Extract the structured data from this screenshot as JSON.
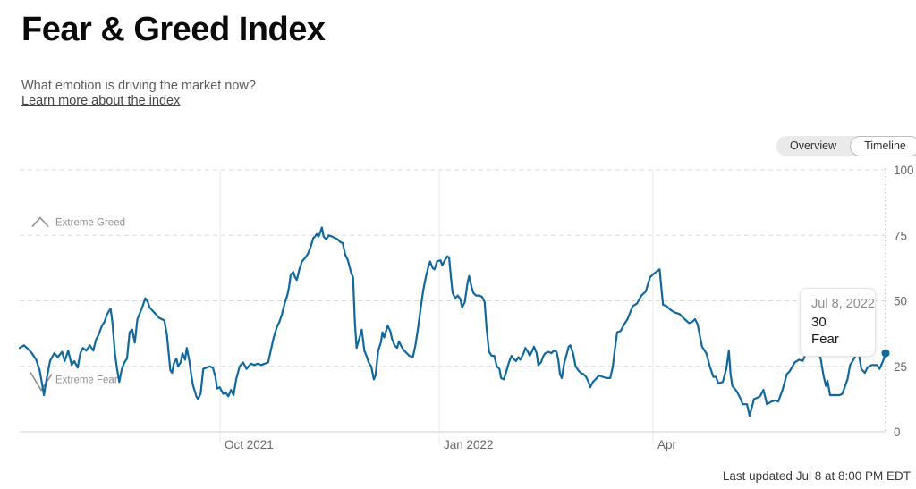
{
  "page": {
    "title": "Fear & Greed Index",
    "subtitle": "What emotion is driving the market now?",
    "link_label": "Learn more about the index",
    "last_updated": "Last updated Jul 8 at 8:00 PM EDT"
  },
  "toggle": {
    "options": [
      "Overview",
      "Timeline"
    ],
    "selected": "Timeline"
  },
  "tooltip": {
    "date": "Jul 8, 2022",
    "value": "30",
    "label": "Fear"
  },
  "colors": {
    "line": "#11689d",
    "dot": "#11689d",
    "grid_dashed": "#d9d9d9",
    "grid_month": "#e9e9e9",
    "axis_zero_line": "#cfcfcf",
    "axis_dotted": "#ababab",
    "axis_text": "#666666",
    "annotation": "#8f8f8f"
  },
  "chart_data": {
    "type": "line",
    "title": "Fear & Greed Index timeline",
    "x_domain": [
      "Jul 2021",
      "Jul 8, 2022"
    ],
    "x_ticks": [
      {
        "label": "Oct 2021",
        "f": 0.2314
      },
      {
        "label": "Jan 2022",
        "f": 0.4845
      },
      {
        "label": "Apr",
        "f": 0.7314
      }
    ],
    "ylim": [
      0,
      100
    ],
    "y_ticks": [
      0,
      25,
      50,
      75,
      100
    ],
    "grid": "dashed-horizontal",
    "legend": "none",
    "annotations": [
      {
        "label": "Extreme Greed",
        "icon": "chevron-up",
        "value": 80
      },
      {
        "label": "Extreme Fear",
        "icon": "chevron-down",
        "value": 20
      }
    ],
    "last_point": {
      "date": "Jul 8, 2022",
      "value": 30,
      "sentiment": "Fear"
    },
    "points": [
      [
        0.0,
        32
      ],
      [
        0.005,
        33
      ],
      [
        0.01,
        31.5
      ],
      [
        0.014,
        30
      ],
      [
        0.019,
        27.5
      ],
      [
        0.023,
        23.5
      ],
      [
        0.026,
        18
      ],
      [
        0.028,
        14
      ],
      [
        0.031,
        20
      ],
      [
        0.035,
        27
      ],
      [
        0.04,
        30
      ],
      [
        0.044,
        28.5
      ],
      [
        0.049,
        30.5
      ],
      [
        0.052,
        27
      ],
      [
        0.056,
        31
      ],
      [
        0.06,
        25.5
      ],
      [
        0.063,
        27
      ],
      [
        0.067,
        24.5
      ],
      [
        0.07,
        30
      ],
      [
        0.073,
        32
      ],
      [
        0.077,
        31
      ],
      [
        0.081,
        33
      ],
      [
        0.085,
        31
      ],
      [
        0.088,
        35
      ],
      [
        0.091,
        37
      ],
      [
        0.095,
        40.5
      ],
      [
        0.098,
        42
      ],
      [
        0.101,
        45
      ],
      [
        0.105,
        47
      ],
      [
        0.107,
        42
      ],
      [
        0.11,
        30
      ],
      [
        0.112,
        25
      ],
      [
        0.115,
        19
      ],
      [
        0.118,
        24
      ],
      [
        0.121,
        26.5
      ],
      [
        0.124,
        28
      ],
      [
        0.127,
        38
      ],
      [
        0.13,
        39
      ],
      [
        0.133,
        34
      ],
      [
        0.136,
        43
      ],
      [
        0.139,
        45.5
      ],
      [
        0.142,
        48
      ],
      [
        0.145,
        51
      ],
      [
        0.148,
        49.5
      ],
      [
        0.15,
        47.5
      ],
      [
        0.154,
        46
      ],
      [
        0.157,
        45
      ],
      [
        0.161,
        43.5
      ],
      [
        0.164,
        43
      ],
      [
        0.167,
        42.5
      ],
      [
        0.17,
        37
      ],
      [
        0.174,
        23.5
      ],
      [
        0.176,
        22.5
      ],
      [
        0.178,
        26
      ],
      [
        0.181,
        28
      ],
      [
        0.183,
        25
      ],
      [
        0.186,
        26.5
      ],
      [
        0.188,
        30
      ],
      [
        0.191,
        27.5
      ],
      [
        0.193,
        32
      ],
      [
        0.196,
        27
      ],
      [
        0.198,
        22
      ],
      [
        0.2,
        18
      ],
      [
        0.204,
        13.5
      ],
      [
        0.206,
        12.5
      ],
      [
        0.209,
        14.5
      ],
      [
        0.212,
        24
      ],
      [
        0.216,
        24.5
      ],
      [
        0.219,
        25
      ],
      [
        0.223,
        24.5
      ],
      [
        0.226,
        21
      ],
      [
        0.228,
        16.5
      ],
      [
        0.231,
        17
      ],
      [
        0.235,
        14.5
      ],
      [
        0.238,
        15
      ],
      [
        0.241,
        13.5
      ],
      [
        0.244,
        16
      ],
      [
        0.247,
        14
      ],
      [
        0.25,
        20
      ],
      [
        0.254,
        25
      ],
      [
        0.258,
        26.5
      ],
      [
        0.262,
        24
      ],
      [
        0.267,
        26
      ],
      [
        0.271,
        25.5
      ],
      [
        0.275,
        26
      ],
      [
        0.279,
        25.5
      ],
      [
        0.283,
        26
      ],
      [
        0.287,
        26.5
      ],
      [
        0.29,
        31
      ],
      [
        0.293,
        35.5
      ],
      [
        0.297,
        40
      ],
      [
        0.3,
        42
      ],
      [
        0.303,
        45
      ],
      [
        0.306,
        49
      ],
      [
        0.309,
        52
      ],
      [
        0.311,
        55
      ],
      [
        0.313,
        60
      ],
      [
        0.316,
        61
      ],
      [
        0.318,
        59
      ],
      [
        0.32,
        58
      ],
      [
        0.323,
        62
      ],
      [
        0.326,
        65
      ],
      [
        0.33,
        66.5
      ],
      [
        0.333,
        68
      ],
      [
        0.336,
        70.5
      ],
      [
        0.339,
        74
      ],
      [
        0.341,
        74.5
      ],
      [
        0.343,
        75.5
      ],
      [
        0.345,
        74.5
      ],
      [
        0.347,
        76
      ],
      [
        0.349,
        78
      ],
      [
        0.351,
        74.5
      ],
      [
        0.354,
        73.5
      ],
      [
        0.357,
        75
      ],
      [
        0.361,
        74.5
      ],
      [
        0.364,
        74
      ],
      [
        0.367,
        73.5
      ],
      [
        0.37,
        72.5
      ],
      [
        0.373,
        72
      ],
      [
        0.376,
        67.5
      ],
      [
        0.379,
        65.5
      ],
      [
        0.381,
        63
      ],
      [
        0.383,
        60.5
      ],
      [
        0.385,
        59
      ],
      [
        0.387,
        42.5
      ],
      [
        0.389,
        32
      ],
      [
        0.393,
        36.5
      ],
      [
        0.395,
        39
      ],
      [
        0.398,
        31
      ],
      [
        0.401,
        28.5
      ],
      [
        0.403,
        26.5
      ],
      [
        0.406,
        25
      ],
      [
        0.409,
        20
      ],
      [
        0.411,
        21.5
      ],
      [
        0.414,
        31
      ],
      [
        0.417,
        34
      ],
      [
        0.419,
        38
      ],
      [
        0.421,
        36
      ],
      [
        0.425,
        40.5
      ],
      [
        0.428,
        38.5
      ],
      [
        0.43,
        35.5
      ],
      [
        0.433,
        33
      ],
      [
        0.436,
        32
      ],
      [
        0.438,
        34.5
      ],
      [
        0.441,
        32.5
      ],
      [
        0.444,
        31
      ],
      [
        0.447,
        30
      ],
      [
        0.45,
        29
      ],
      [
        0.454,
        28.5
      ],
      [
        0.457,
        33
      ],
      [
        0.46,
        39.5
      ],
      [
        0.463,
        47
      ],
      [
        0.466,
        54
      ],
      [
        0.469,
        59
      ],
      [
        0.472,
        63
      ],
      [
        0.474,
        65
      ],
      [
        0.477,
        62.5
      ],
      [
        0.479,
        62
      ],
      [
        0.482,
        65
      ],
      [
        0.486,
        65.5
      ],
      [
        0.488,
        63.5
      ],
      [
        0.491,
        65.5
      ],
      [
        0.494,
        67
      ],
      [
        0.496,
        66.5
      ],
      [
        0.498,
        59
      ],
      [
        0.5,
        53
      ],
      [
        0.503,
        51
      ],
      [
        0.506,
        52
      ],
      [
        0.509,
        50.5
      ],
      [
        0.511,
        47.5
      ],
      [
        0.514,
        49.5
      ],
      [
        0.517,
        56.5
      ],
      [
        0.519,
        59.5
      ],
      [
        0.522,
        55
      ],
      [
        0.524,
        53
      ],
      [
        0.527,
        52
      ],
      [
        0.531,
        52
      ],
      [
        0.534,
        51.5
      ],
      [
        0.537,
        49.5
      ],
      [
        0.539,
        40
      ],
      [
        0.542,
        30.5
      ],
      [
        0.545,
        29
      ],
      [
        0.548,
        29
      ],
      [
        0.551,
        25
      ],
      [
        0.554,
        24
      ],
      [
        0.556,
        20.5
      ],
      [
        0.559,
        20
      ],
      [
        0.562,
        23
      ],
      [
        0.565,
        26.5
      ],
      [
        0.568,
        29
      ],
      [
        0.57,
        28
      ],
      [
        0.573,
        27
      ],
      [
        0.576,
        28.5
      ],
      [
        0.578,
        27.5
      ],
      [
        0.582,
        30
      ],
      [
        0.584,
        32
      ],
      [
        0.587,
        30.5
      ],
      [
        0.589,
        29
      ],
      [
        0.592,
        31
      ],
      [
        0.594,
        32.5
      ],
      [
        0.597,
        30
      ],
      [
        0.599,
        25.5
      ],
      [
        0.602,
        26.5
      ],
      [
        0.605,
        29
      ],
      [
        0.607,
        30
      ],
      [
        0.611,
        30.5
      ],
      [
        0.614,
        30
      ],
      [
        0.617,
        31
      ],
      [
        0.62,
        30.5
      ],
      [
        0.622,
        27.5
      ],
      [
        0.624,
        22
      ],
      [
        0.626,
        20.5
      ],
      [
        0.629,
        26.5
      ],
      [
        0.632,
        30
      ],
      [
        0.634,
        32.5
      ],
      [
        0.636,
        33
      ],
      [
        0.639,
        30
      ],
      [
        0.642,
        25
      ],
      [
        0.645,
        23.5
      ],
      [
        0.648,
        22.5
      ],
      [
        0.651,
        22
      ],
      [
        0.654,
        21
      ],
      [
        0.657,
        19
      ],
      [
        0.659,
        17
      ],
      [
        0.662,
        19
      ],
      [
        0.665,
        20
      ],
      [
        0.669,
        21.5
      ],
      [
        0.673,
        21
      ],
      [
        0.678,
        20.5
      ],
      [
        0.682,
        20.5
      ],
      [
        0.685,
        25
      ],
      [
        0.687,
        30.5
      ],
      [
        0.69,
        38
      ],
      [
        0.694,
        38.5
      ],
      [
        0.698,
        41
      ],
      [
        0.702,
        43
      ],
      [
        0.708,
        48
      ],
      [
        0.713,
        49
      ],
      [
        0.718,
        52
      ],
      [
        0.723,
        53.5
      ],
      [
        0.728,
        59
      ],
      [
        0.733,
        60.5
      ],
      [
        0.739,
        62
      ],
      [
        0.741,
        55
      ],
      [
        0.743,
        48.5
      ],
      [
        0.747,
        48
      ],
      [
        0.752,
        46.5
      ],
      [
        0.757,
        45.5
      ],
      [
        0.762,
        45
      ],
      [
        0.768,
        43
      ],
      [
        0.773,
        41.5
      ],
      [
        0.777,
        42
      ],
      [
        0.78,
        43
      ],
      [
        0.783,
        41
      ],
      [
        0.788,
        32.5
      ],
      [
        0.793,
        30
      ],
      [
        0.797,
        25
      ],
      [
        0.801,
        21
      ],
      [
        0.804,
        21
      ],
      [
        0.807,
        18.5
      ],
      [
        0.812,
        19
      ],
      [
        0.816,
        24
      ],
      [
        0.819,
        31
      ],
      [
        0.821,
        22
      ],
      [
        0.823,
        17.5
      ],
      [
        0.828,
        15.5
      ],
      [
        0.832,
        13
      ],
      [
        0.835,
        10.5
      ],
      [
        0.84,
        10.5
      ],
      [
        0.843,
        6
      ],
      [
        0.848,
        12.5
      ],
      [
        0.852,
        13
      ],
      [
        0.855,
        13.5
      ],
      [
        0.859,
        16
      ],
      [
        0.863,
        10.5
      ],
      [
        0.868,
        11.5
      ],
      [
        0.873,
        12
      ],
      [
        0.876,
        11.5
      ],
      [
        0.881,
        16
      ],
      [
        0.886,
        22
      ],
      [
        0.889,
        23
      ],
      [
        0.895,
        26.5
      ],
      [
        0.9,
        27.5
      ],
      [
        0.904,
        27
      ],
      [
        0.907,
        29
      ],
      [
        0.91,
        31
      ],
      [
        0.914,
        31.5
      ],
      [
        0.919,
        32
      ],
      [
        0.923,
        30
      ],
      [
        0.925,
        28
      ],
      [
        0.928,
        22
      ],
      [
        0.931,
        17.5
      ],
      [
        0.933,
        19.5
      ],
      [
        0.936,
        14
      ],
      [
        0.94,
        14
      ],
      [
        0.943,
        14
      ],
      [
        0.947,
        14
      ],
      [
        0.95,
        14.5
      ],
      [
        0.956,
        20
      ],
      [
        0.959,
        25.5
      ],
      [
        0.962,
        27
      ],
      [
        0.966,
        29.5
      ],
      [
        0.969,
        30
      ],
      [
        0.972,
        24
      ],
      [
        0.976,
        22.5
      ],
      [
        0.979,
        24.5
      ],
      [
        0.984,
        25.5
      ],
      [
        0.99,
        25.5
      ],
      [
        0.993,
        24
      ],
      [
        0.997,
        27
      ],
      [
        1.0,
        30
      ]
    ]
  }
}
